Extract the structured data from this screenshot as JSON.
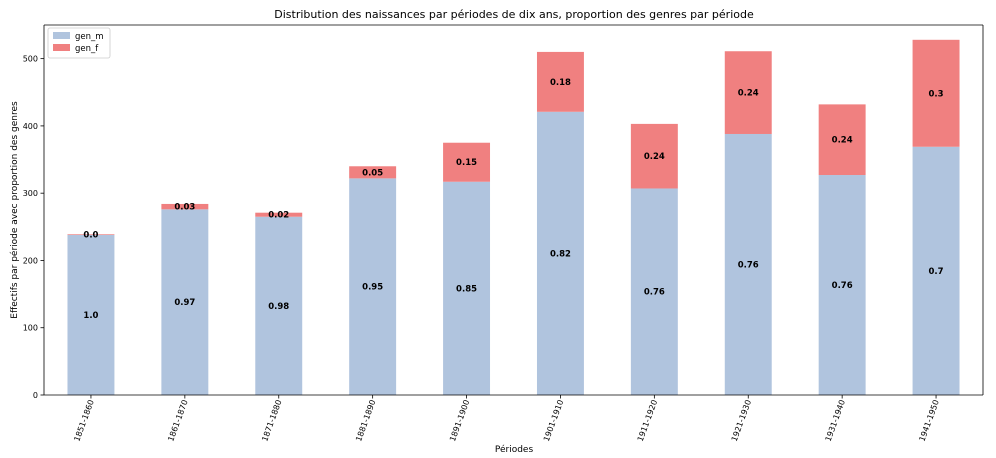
{
  "chart_data": {
    "type": "bar",
    "stacked": true,
    "title": "Distribution des naissances par périodes de dix ans, proportion des genres par période",
    "xlabel": "Périodes",
    "ylabel": "Effectifs par période avec proportion des genres",
    "ylim": [
      0,
      550
    ],
    "yticks": [
      0,
      100,
      200,
      300,
      400,
      500
    ],
    "grid": false,
    "legend_position": "top-left",
    "categories": [
      "1851-1860",
      "1861-1870",
      "1871-1880",
      "1881-1890",
      "1891-1900",
      "1901-1910",
      "1911-1920",
      "1921-1930",
      "1931-1940",
      "1941-1950"
    ],
    "series": [
      {
        "name": "gen_m",
        "color": "#b0c4de",
        "values": [
          238,
          276,
          265,
          322,
          317,
          421,
          307,
          388,
          327,
          369
        ],
        "labels": [
          "1.0",
          "0.97",
          "0.98",
          "0.95",
          "0.85",
          "0.82",
          "0.76",
          "0.76",
          "0.76",
          "0.7"
        ]
      },
      {
        "name": "gen_f",
        "color": "#f08080",
        "values": [
          1,
          8,
          6,
          18,
          58,
          89,
          96,
          123,
          105,
          159
        ],
        "labels": [
          "0.0",
          "0.03",
          "0.02",
          "0.05",
          "0.15",
          "0.18",
          "0.24",
          "0.24",
          "0.24",
          "0.3"
        ]
      }
    ]
  }
}
